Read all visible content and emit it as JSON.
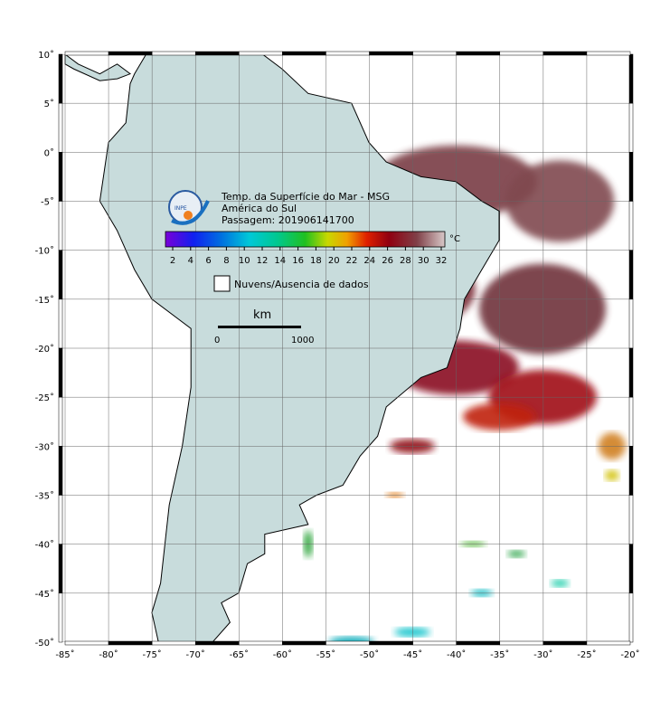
{
  "map": {
    "title": "Temp. da Superfície do Mar - MSG",
    "region": "América do Sul",
    "pass": "Passagem: 201906141700",
    "logo": "INPE",
    "colorbar": {
      "ticks": [
        2,
        4,
        6,
        8,
        10,
        12,
        14,
        16,
        18,
        20,
        22,
        24,
        26,
        28,
        30,
        32
      ],
      "unit": "°C"
    },
    "legend": "Nuvens/Ausencia de dados",
    "scale": {
      "unit": "km",
      "labels": [
        "0",
        "1000"
      ]
    },
    "lat_labels": [
      "10˚",
      "5˚",
      "0˚",
      "-5˚",
      "-10˚",
      "-15˚",
      "-20˚",
      "-25˚",
      "-30˚",
      "-35˚",
      "-40˚",
      "-45˚",
      "-50˚"
    ],
    "lon_labels": [
      "-85˚",
      "-80˚",
      "-75˚",
      "-70˚",
      "-65˚",
      "-60˚",
      "-55˚",
      "-50˚",
      "-45˚",
      "-40˚",
      "-35˚",
      "-30˚",
      "-25˚",
      "-20˚"
    ]
  }
}
